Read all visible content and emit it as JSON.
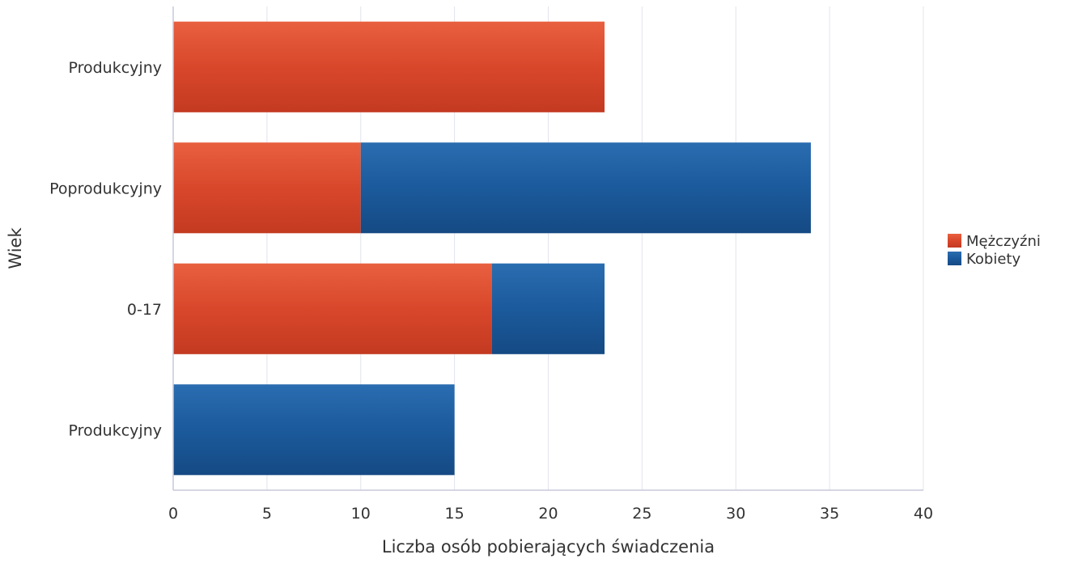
{
  "chart_data": {
    "type": "bar",
    "orientation": "horizontal",
    "stacked": true,
    "title": "",
    "xlabel": "Liczba osób pobierających świadczenia",
    "ylabel": "Wiek",
    "xlim": [
      0,
      40
    ],
    "xticks": [
      0,
      5,
      10,
      15,
      20,
      25,
      30,
      35,
      40
    ],
    "grid": "vertical",
    "legend_position": "right",
    "categories": [
      "Produkcyjny",
      "Poprodukcyjny",
      "0-17",
      "Produkcyjny"
    ],
    "series": [
      {
        "name": "Mężczyźni",
        "color": "#d9472b",
        "values": [
          23,
          10,
          17,
          0
        ]
      },
      {
        "name": "Kobiety",
        "color": "#1b5a9c",
        "values": [
          0,
          24,
          6,
          15
        ]
      }
    ]
  }
}
